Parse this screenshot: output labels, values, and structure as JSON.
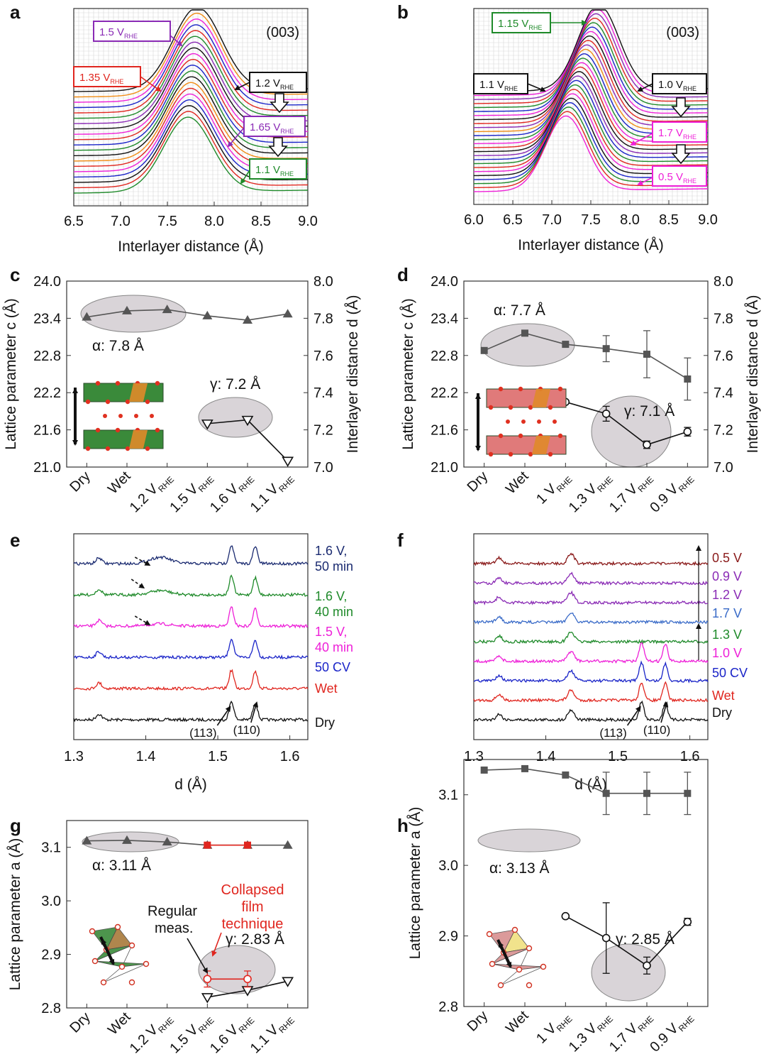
{
  "colors": {
    "black": "#111111",
    "red": "#e0261f",
    "blue": "#1a24c8",
    "green": "#1f8a2a",
    "magenta": "#ee20d8",
    "purple": "#8a2bb5",
    "orange": "#f08c14",
    "navy": "#1a2a70",
    "steelblue": "#3a6bc8",
    "maroon": "#8a1a1a",
    "grey": "#555555",
    "shade": "#d9d4d8"
  },
  "chart_data": [
    {
      "panel": "a",
      "type": "line",
      "title": "",
      "xlabel": "Interlayer distance (Å)",
      "xlim": [
        6.5,
        9.0
      ],
      "xticks": [
        "6.5",
        "7.0",
        "7.5",
        "8.0",
        "8.5",
        "9.0"
      ],
      "reflection": "(003)",
      "n_curves": 20,
      "peak_start": 7.72,
      "peak_end": 7.82,
      "curve_colors": [
        "green",
        "red",
        "black",
        "blue",
        "magenta",
        "red",
        "orange",
        "black",
        "green",
        "blue",
        "red",
        "magenta",
        "black",
        "purple",
        "green",
        "red",
        "blue",
        "magenta",
        "orange",
        "black"
      ],
      "labels": [
        {
          "text": "1.5 V",
          "sub": "RHE",
          "color": "purple"
        },
        {
          "text": "1.35 V",
          "sub": "RHE",
          "color": "red"
        },
        {
          "text": "1.2 V",
          "sub": "RHE",
          "color": "black"
        },
        {
          "text": "1.65 V",
          "sub": "RHE",
          "color": "purple"
        },
        {
          "text": "1.1 V",
          "sub": "RHE",
          "color": "green"
        }
      ]
    },
    {
      "panel": "b",
      "type": "line",
      "title": "",
      "xlabel": "Interlayer distance (Å)",
      "xlim": [
        6.0,
        9.0
      ],
      "xticks": [
        "6.0",
        "6.5",
        "7.0",
        "7.5",
        "8.0",
        "8.5",
        "9.0"
      ],
      "reflection": "(003)",
      "n_curves": 26,
      "peak_start": 7.18,
      "peak_end": 7.6,
      "curve_colors": [
        "magenta",
        "red",
        "green",
        "blue",
        "black",
        "magenta",
        "red",
        "green",
        "blue",
        "purple",
        "black",
        "red",
        "magenta",
        "green",
        "blue",
        "orange",
        "purple",
        "red",
        "black",
        "magenta",
        "blue",
        "green",
        "red",
        "purple",
        "magenta",
        "black"
      ],
      "labels": [
        {
          "text": "1.15 V",
          "sub": "RHE",
          "color": "green"
        },
        {
          "text": "1.1 V",
          "sub": "RHE",
          "color": "black"
        },
        {
          "text": "1.0 V",
          "sub": "RHE",
          "color": "black"
        },
        {
          "text": "1.7 V",
          "sub": "RHE",
          "color": "magenta"
        },
        {
          "text": "0.5 V",
          "sub": "RHE",
          "color": "magenta"
        }
      ]
    },
    {
      "panel": "c",
      "type": "line",
      "ylabel": "Lattice parameter c (Å)",
      "ylabel2": "Interlayer distance d (Å)",
      "ylim": [
        21.0,
        24.0
      ],
      "yticks": [
        "21.0",
        "21.6",
        "22.2",
        "22.8",
        "23.4",
        "24.0"
      ],
      "y2lim": [
        7.0,
        8.0
      ],
      "y2ticks": [
        "7.0",
        "7.2",
        "7.4",
        "7.6",
        "7.8",
        "8.0"
      ],
      "categories": [
        "Dry",
        "Wet",
        "1.2 V",
        "1.5 V",
        "1.6 V",
        "1.1 V"
      ],
      "category_sub": "RHE",
      "series": [
        {
          "name": "α",
          "marker": "triangle-up",
          "x": [
            0,
            1,
            2,
            3,
            4,
            5
          ],
          "values": [
            23.42,
            23.52,
            23.54,
            23.44,
            23.37,
            23.47
          ]
        },
        {
          "name": "γ",
          "marker": "triangle-down-open",
          "x": [
            3,
            4,
            5
          ],
          "values": [
            21.7,
            21.76,
            21.1
          ]
        }
      ],
      "annotations": [
        "α: 7.8 Å",
        "γ: 7.2 Å"
      ]
    },
    {
      "panel": "d",
      "type": "line",
      "ylabel": "Lattice parameter c (Å)",
      "ylabel2": "Interlayer distance d (Å)",
      "ylim": [
        21.0,
        24.0
      ],
      "yticks": [
        "21.0",
        "21.6",
        "22.2",
        "22.8",
        "23.4",
        "24.0"
      ],
      "y2lim": [
        7.0,
        8.0
      ],
      "y2ticks": [
        "7.0",
        "7.2",
        "7.4",
        "7.6",
        "7.8",
        "8.0"
      ],
      "categories": [
        "Dry",
        "Wet",
        "1 V",
        "1.3 V",
        "1.7 V",
        "0.9 V"
      ],
      "category_sub": "RHE",
      "series": [
        {
          "name": "α",
          "marker": "square",
          "x": [
            0,
            1,
            2,
            3,
            4,
            5
          ],
          "values": [
            22.88,
            23.16,
            22.98,
            22.91,
            22.82,
            22.42
          ],
          "errors": [
            0,
            0,
            0,
            0.21,
            0.38,
            0.34
          ]
        },
        {
          "name": "γ",
          "marker": "circle-open",
          "x": [
            2,
            3,
            4,
            5
          ],
          "values": [
            22.05,
            21.86,
            21.36,
            21.57
          ],
          "errors": [
            0,
            0.12,
            0.06,
            0.07
          ]
        }
      ],
      "annotations": [
        "α: 7.7 Å",
        "γ: 7.1 Å"
      ]
    },
    {
      "panel": "e",
      "type": "line",
      "xlabel": "d (Å)",
      "xlim": [
        1.3,
        1.625
      ],
      "xticks": [
        "1.3",
        "1.4",
        "1.5",
        "1.6"
      ],
      "peaks": [
        "(113)",
        "(110)"
      ],
      "traces": [
        {
          "label": "Dry",
          "color": "black"
        },
        {
          "label": "Wet",
          "color": "red"
        },
        {
          "label": "50 CV",
          "color": "blue"
        },
        {
          "label": "1.5 V, 40 min",
          "color": "magenta"
        },
        {
          "label": "1.6 V, 40 min",
          "color": "green"
        },
        {
          "label": "1.6 V, 50 min",
          "color": "navy"
        }
      ]
    },
    {
      "panel": "f",
      "type": "line",
      "xlabel": "d (Å)",
      "xlim": [
        1.3,
        1.625
      ],
      "xticks": [
        "1.3",
        "1.4",
        "1.5",
        "1.6"
      ],
      "peaks": [
        "(113)",
        "(110)"
      ],
      "traces": [
        {
          "label": "Dry",
          "color": "black"
        },
        {
          "label": "Wet",
          "color": "red"
        },
        {
          "label": "50 CV",
          "color": "blue"
        },
        {
          "label": "1.0 V",
          "color": "magenta"
        },
        {
          "label": "1.3 V",
          "color": "green"
        },
        {
          "label": "1.7 V",
          "color": "steelblue"
        },
        {
          "label": "1.2 V",
          "color": "purple"
        },
        {
          "label": "0.9 V",
          "color": "purple"
        },
        {
          "label": "0.5 V",
          "color": "maroon"
        }
      ]
    },
    {
      "panel": "g",
      "type": "line",
      "ylabel": "Lattice parameter a (Å)",
      "ylim": [
        2.8,
        3.15
      ],
      "yticks": [
        "2.8",
        "2.9",
        "3.0",
        "3.1"
      ],
      "categories": [
        "Dry",
        "Wet",
        "1.2 V",
        "1.5 V",
        "1.6 V",
        "1.1 V"
      ],
      "category_sub": "RHE",
      "series": [
        {
          "name": "α",
          "marker": "triangle-up",
          "x": [
            0,
            1,
            2,
            3,
            4,
            5
          ],
          "values": [
            3.112,
            3.113,
            3.11,
            3.104,
            3.104,
            3.104
          ]
        },
        {
          "name": "α collapsed film",
          "marker": "square-red",
          "x": [
            3,
            4
          ],
          "values": [
            3.104,
            3.104
          ]
        },
        {
          "name": "γ",
          "marker": "triangle-down-open",
          "x": [
            3,
            4,
            5
          ],
          "values": [
            2.82,
            2.833,
            2.85
          ]
        },
        {
          "name": "γ collapsed film",
          "marker": "circle-open-red",
          "x": [
            3,
            4
          ],
          "values": [
            2.854,
            2.854
          ],
          "errors": [
            0.015,
            0.015
          ]
        }
      ],
      "annotations": [
        "α: 3.11 Å",
        "γ: 2.83 Å",
        "Regular",
        "meas.",
        "Collapsed",
        "film",
        "technique"
      ]
    },
    {
      "panel": "h",
      "type": "line",
      "ylabel": "Lattice parameter a (Å)",
      "ylim": [
        2.8,
        3.15
      ],
      "yticks": [
        "2.8",
        "2.9",
        "3.0",
        "3.1"
      ],
      "categories": [
        "Dry",
        "Wet",
        "1 V",
        "1.3 V",
        "1.7 V",
        "0.9 V"
      ],
      "category_sub": "RHE",
      "series": [
        {
          "name": "α",
          "marker": "square",
          "x": [
            0,
            1,
            2,
            3,
            4,
            5
          ],
          "values": [
            3.135,
            3.137,
            3.128,
            3.102,
            3.102,
            3.102
          ],
          "errors": [
            0,
            0,
            0,
            0.03,
            0.03,
            0.03
          ]
        },
        {
          "name": "γ",
          "marker": "circle-open",
          "x": [
            2,
            3,
            4,
            5
          ],
          "values": [
            2.928,
            2.897,
            2.858,
            2.92
          ],
          "errors": [
            0,
            0.05,
            0.012,
            0.005
          ]
        }
      ],
      "annotations": [
        "α: 3.13 Å",
        "γ: 2.85 Å"
      ]
    }
  ],
  "panel_letters": [
    "a",
    "b",
    "c",
    "d",
    "e",
    "f",
    "g",
    "h"
  ]
}
